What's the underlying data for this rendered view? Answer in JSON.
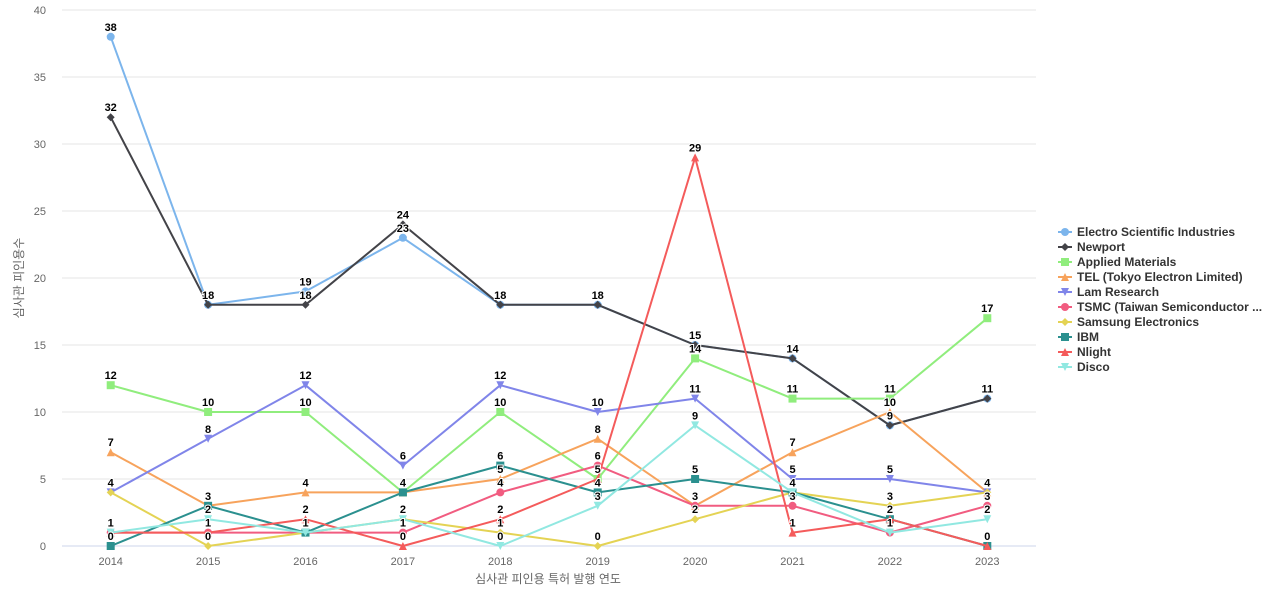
{
  "chart_data": {
    "type": "line",
    "xlabel": "심사관 피인용 특허 발행 연도",
    "ylabel": "심사관 피인용수",
    "ylim": [
      0,
      40
    ],
    "y_ticks": [
      0,
      5,
      10,
      15,
      20,
      25,
      30,
      35,
      40
    ],
    "x": [
      "2014",
      "2015",
      "2016",
      "2017",
      "2018",
      "2019",
      "2020",
      "2021",
      "2022",
      "2023"
    ],
    "grid": true,
    "legend_position": "right",
    "series": [
      {
        "name": "Electro Scientific Industries",
        "color": "#7cb5ec",
        "marker": "circle",
        "values": [
          38,
          18,
          19,
          23,
          18,
          18,
          15,
          14,
          9,
          11
        ]
      },
      {
        "name": "Newport",
        "color": "#434348",
        "marker": "diamond",
        "values": [
          32,
          18,
          18,
          24,
          18,
          18,
          15,
          14,
          9,
          11
        ]
      },
      {
        "name": "Applied Materials",
        "color": "#90ed7d",
        "marker": "square",
        "values": [
          12,
          10,
          10,
          4,
          10,
          5,
          14,
          11,
          11,
          17
        ]
      },
      {
        "name": "TEL (Tokyo Electron Limited)",
        "color": "#f7a35c",
        "marker": "triangle",
        "values": [
          7,
          3,
          4,
          4,
          5,
          8,
          3,
          7,
          10,
          4
        ]
      },
      {
        "name": "Lam Research",
        "color": "#8085e9",
        "marker": "triangle-down",
        "values": [
          4,
          8,
          12,
          6,
          12,
          10,
          11,
          5,
          5,
          4
        ]
      },
      {
        "name": "TSMC (Taiwan Semiconductor ...",
        "color": "#f15c80",
        "marker": "circle",
        "values": [
          1,
          1,
          1,
          1,
          4,
          6,
          3,
          3,
          1,
          3
        ]
      },
      {
        "name": "Samsung Electronics",
        "color": "#e4d354",
        "marker": "diamond",
        "values": [
          4,
          0,
          1,
          2,
          1,
          0,
          2,
          4,
          3,
          4
        ]
      },
      {
        "name": "IBM",
        "color": "#2b908f",
        "marker": "square",
        "values": [
          0,
          3,
          1,
          4,
          6,
          4,
          5,
          4,
          2,
          0
        ]
      },
      {
        "name": "Nlight",
        "color": "#f45b5b",
        "marker": "triangle",
        "values": [
          1,
          1,
          2,
          0,
          2,
          5,
          29,
          1,
          2,
          0
        ]
      },
      {
        "name": "Disco",
        "color": "#91e8e1",
        "marker": "triangle-down",
        "values": [
          1,
          2,
          1,
          2,
          0,
          3,
          9,
          4,
          1,
          2
        ]
      }
    ],
    "data_labels": [
      {
        "x": "2014",
        "text": "38",
        "value": 38
      },
      {
        "x": "2014",
        "text": "32",
        "value": 32
      },
      {
        "x": "2014",
        "text": "12",
        "value": 12
      },
      {
        "x": "2014",
        "text": "7",
        "value": 7
      },
      {
        "x": "2014",
        "text": "4",
        "value": 4
      },
      {
        "x": "2014",
        "text": "1",
        "value": 1
      },
      {
        "x": "2014",
        "text": "0",
        "value": 0
      },
      {
        "x": "2015",
        "text": "18",
        "value": 18
      },
      {
        "x": "2015",
        "text": "10",
        "value": 10
      },
      {
        "x": "2015",
        "text": "8",
        "value": 8
      },
      {
        "x": "2015",
        "text": "3",
        "value": 3
      },
      {
        "x": "2015",
        "text": "2",
        "value": 2
      },
      {
        "x": "2015",
        "text": "1",
        "value": 1
      },
      {
        "x": "2015",
        "text": "0",
        "value": 0
      },
      {
        "x": "2016",
        "text": "19",
        "value": 19
      },
      {
        "x": "2016",
        "text": "18",
        "value": 18
      },
      {
        "x": "2016",
        "text": "12",
        "value": 12
      },
      {
        "x": "2016",
        "text": "10",
        "value": 10
      },
      {
        "x": "2016",
        "text": "4",
        "value": 4
      },
      {
        "x": "2016",
        "text": "2",
        "value": 2
      },
      {
        "x": "2016",
        "text": "1",
        "value": 1
      },
      {
        "x": "2017",
        "text": "24",
        "value": 24
      },
      {
        "x": "2017",
        "text": "23",
        "value": 23
      },
      {
        "x": "2017",
        "text": "6",
        "value": 6
      },
      {
        "x": "2017",
        "text": "4",
        "value": 4
      },
      {
        "x": "2017",
        "text": "2",
        "value": 2
      },
      {
        "x": "2017",
        "text": "1",
        "value": 1
      },
      {
        "x": "2017",
        "text": "0",
        "value": 0
      },
      {
        "x": "2018",
        "text": "18",
        "value": 18
      },
      {
        "x": "2018",
        "text": "12",
        "value": 12
      },
      {
        "x": "2018",
        "text": "10",
        "value": 10
      },
      {
        "x": "2018",
        "text": "6",
        "value": 6
      },
      {
        "x": "2018",
        "text": "5",
        "value": 5
      },
      {
        "x": "2018",
        "text": "4",
        "value": 4
      },
      {
        "x": "2018",
        "text": "2",
        "value": 2
      },
      {
        "x": "2018",
        "text": "1",
        "value": 1
      },
      {
        "x": "2018",
        "text": "0",
        "value": 0
      },
      {
        "x": "2019",
        "text": "18",
        "value": 18
      },
      {
        "x": "2019",
        "text": "10",
        "value": 10
      },
      {
        "x": "2019",
        "text": "8",
        "value": 8
      },
      {
        "x": "2019",
        "text": "6",
        "value": 6
      },
      {
        "x": "2019",
        "text": "5",
        "value": 5
      },
      {
        "x": "2019",
        "text": "4",
        "value": 4
      },
      {
        "x": "2019",
        "text": "3",
        "value": 3
      },
      {
        "x": "2019",
        "text": "0",
        "value": 0
      },
      {
        "x": "2020",
        "text": "29",
        "value": 29
      },
      {
        "x": "2020",
        "text": "15",
        "value": 15
      },
      {
        "x": "2020",
        "text": "14",
        "value": 14
      },
      {
        "x": "2020",
        "text": "11",
        "value": 11
      },
      {
        "x": "2020",
        "text": "9",
        "value": 9
      },
      {
        "x": "2020",
        "text": "5",
        "value": 5
      },
      {
        "x": "2020",
        "text": "3",
        "value": 3
      },
      {
        "x": "2020",
        "text": "2",
        "value": 2
      },
      {
        "x": "2021",
        "text": "14",
        "value": 14
      },
      {
        "x": "2021",
        "text": "11",
        "value": 11
      },
      {
        "x": "2021",
        "text": "7",
        "value": 7
      },
      {
        "x": "2021",
        "text": "5",
        "value": 5
      },
      {
        "x": "2021",
        "text": "4",
        "value": 4
      },
      {
        "x": "2021",
        "text": "3",
        "value": 3
      },
      {
        "x": "2021",
        "text": "1",
        "value": 1
      },
      {
        "x": "2022",
        "text": "11",
        "value": 11
      },
      {
        "x": "2022",
        "text": "10",
        "value": 10
      },
      {
        "x": "2022",
        "text": "9",
        "value": 9
      },
      {
        "x": "2022",
        "text": "5",
        "value": 5
      },
      {
        "x": "2022",
        "text": "3",
        "value": 3
      },
      {
        "x": "2022",
        "text": "2",
        "value": 2
      },
      {
        "x": "2022",
        "text": "1",
        "value": 1
      },
      {
        "x": "2023",
        "text": "17",
        "value": 17
      },
      {
        "x": "2023",
        "text": "11",
        "value": 11
      },
      {
        "x": "2023",
        "text": "4",
        "value": 4
      },
      {
        "x": "2023",
        "text": "3",
        "value": 3
      },
      {
        "x": "2023",
        "text": "2",
        "value": 2
      },
      {
        "x": "2023",
        "text": "0",
        "value": 0
      }
    ]
  }
}
